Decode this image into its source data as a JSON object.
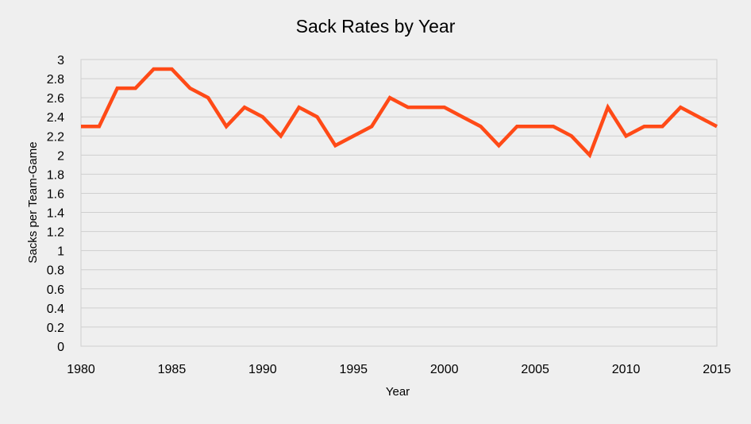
{
  "chart_data": {
    "type": "line",
    "title": "Sack Rates by Year",
    "xlabel": "Year",
    "ylabel": "Sacks per Team-Game",
    "xlim": [
      1980,
      2015
    ],
    "ylim": [
      0,
      3
    ],
    "x_ticks": [
      "1980",
      "1985",
      "1990",
      "1995",
      "2000",
      "2005",
      "2010",
      "2015"
    ],
    "y_ticks": [
      "0",
      "0.2",
      "0.4",
      "0.6",
      "0.8",
      "1",
      "1.2",
      "1.4",
      "1.6",
      "1.8",
      "2",
      "2.2",
      "2.4",
      "2.6",
      "2.8",
      "3"
    ],
    "grid": true,
    "legend": "none",
    "series": [
      {
        "color": "#ff4a17",
        "x": [
          1980,
          1981,
          1982,
          1983,
          1984,
          1985,
          1986,
          1987,
          1988,
          1989,
          1990,
          1991,
          1992,
          1993,
          1994,
          1995,
          1996,
          1997,
          1998,
          1999,
          2000,
          2001,
          2002,
          2003,
          2004,
          2005,
          2006,
          2007,
          2008,
          2009,
          2010,
          2011,
          2012,
          2013,
          2014,
          2015
        ],
        "values": [
          2.3,
          2.3,
          2.7,
          2.7,
          2.9,
          2.9,
          2.7,
          2.6,
          2.3,
          2.5,
          2.4,
          2.2,
          2.5,
          2.4,
          2.1,
          2.2,
          2.3,
          2.6,
          2.5,
          2.5,
          2.5,
          2.4,
          2.3,
          2.1,
          2.3,
          2.3,
          2.3,
          2.2,
          2.0,
          2.5,
          2.2,
          2.3,
          2.3,
          2.5,
          2.4,
          2.3
        ]
      }
    ]
  }
}
